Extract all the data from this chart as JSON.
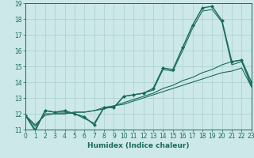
{
  "title": "",
  "xlabel": "Humidex (Indice chaleur)",
  "ylabel": "",
  "bg_color": "#cce8e8",
  "line_color": "#1a6b5a",
  "grid_color": "#aacfcf",
  "xmin": 0,
  "xmax": 23,
  "ymin": 11,
  "ymax": 19,
  "series": [
    {
      "x": [
        0,
        1,
        2,
        3,
        4,
        5,
        6,
        7,
        8,
        9,
        10,
        11,
        12,
        13,
        14,
        15,
        16,
        17,
        18,
        19,
        20,
        21,
        22,
        23
      ],
      "y": [
        11.9,
        10.9,
        12.2,
        12.1,
        12.2,
        12.0,
        11.8,
        11.3,
        12.4,
        12.4,
        13.1,
        13.2,
        13.3,
        13.6,
        14.9,
        14.8,
        16.2,
        17.6,
        18.7,
        18.8,
        17.9,
        15.3,
        15.4,
        14.0
      ],
      "marker": "D",
      "lw": 1.0,
      "ms": 2.0
    },
    {
      "x": [
        0,
        1,
        2,
        3,
        4,
        5,
        6,
        7,
        8,
        9,
        10,
        11,
        12,
        13,
        14,
        15,
        16,
        17,
        18,
        19,
        20,
        21,
        22,
        23
      ],
      "y": [
        11.9,
        11.2,
        12.0,
        12.0,
        12.0,
        12.1,
        12.1,
        12.2,
        12.3,
        12.5,
        12.6,
        12.8,
        13.0,
        13.2,
        13.4,
        13.6,
        13.8,
        14.0,
        14.2,
        14.4,
        14.6,
        14.7,
        14.9,
        13.7
      ],
      "marker": null,
      "lw": 0.8,
      "ms": 0
    },
    {
      "x": [
        0,
        1,
        2,
        3,
        4,
        5,
        6,
        7,
        8,
        9,
        10,
        11,
        12,
        13,
        14,
        15,
        16,
        17,
        18,
        19,
        20,
        21,
        22,
        23
      ],
      "y": [
        11.9,
        11.3,
        11.9,
        12.0,
        12.0,
        12.1,
        12.1,
        12.2,
        12.4,
        12.5,
        12.7,
        12.9,
        13.1,
        13.3,
        13.6,
        13.8,
        14.1,
        14.3,
        14.6,
        14.8,
        15.1,
        15.3,
        15.4,
        13.7
      ],
      "marker": null,
      "lw": 0.8,
      "ms": 0
    },
    {
      "x": [
        0,
        1,
        2,
        3,
        4,
        5,
        6,
        7,
        8,
        9,
        10,
        11,
        12,
        13,
        14,
        15,
        16,
        17,
        18,
        19,
        20,
        21,
        22,
        23
      ],
      "y": [
        11.9,
        11.0,
        12.2,
        12.1,
        12.1,
        12.0,
        11.7,
        11.4,
        12.4,
        12.4,
        13.1,
        13.2,
        13.3,
        13.5,
        14.8,
        14.7,
        16.0,
        17.4,
        18.5,
        18.6,
        17.8,
        15.1,
        15.3,
        13.8
      ],
      "marker": null,
      "lw": 0.8,
      "ms": 0
    }
  ],
  "tick_fontsize": 5.5,
  "xlabel_fontsize": 6.5
}
